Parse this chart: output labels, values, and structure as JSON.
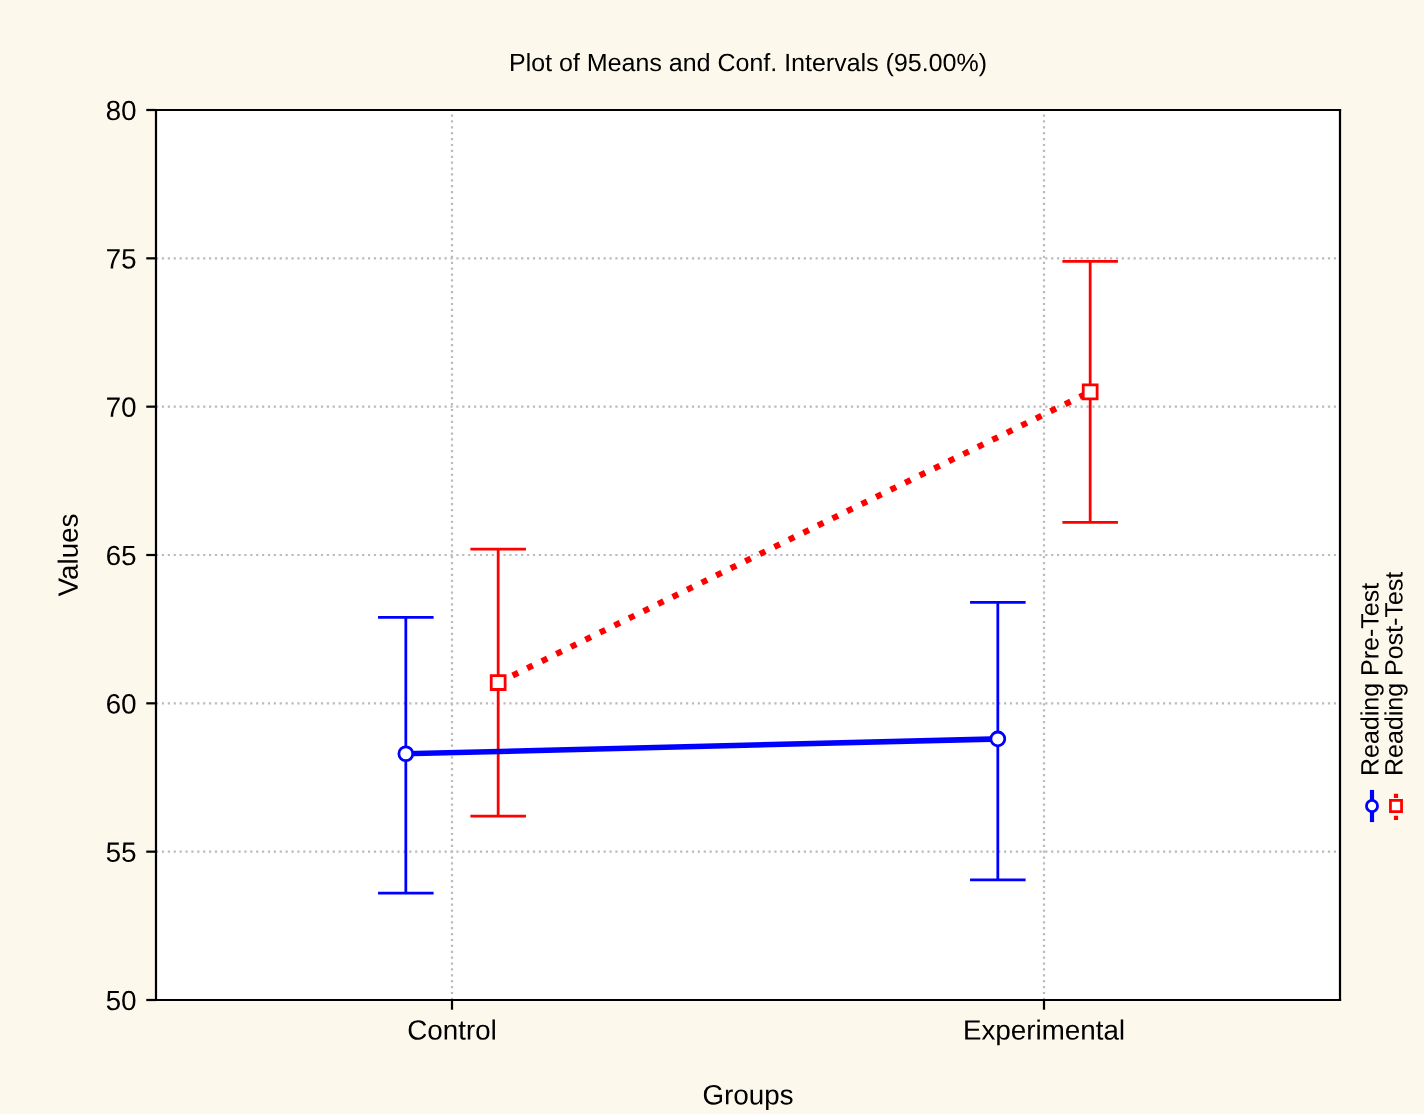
{
  "chart_data": {
    "type": "line",
    "title": "Plot of Means and Conf. Intervals (95.00%)",
    "xlabel": "Groups",
    "ylabel": "Values",
    "categories": [
      "Control",
      "Experimental"
    ],
    "series": [
      {
        "name": "Reading Pre-Test",
        "color": "#0000ff",
        "values": [
          58.3,
          58.8
        ],
        "errors": [
          [
            53.6,
            62.9
          ],
          [
            54.05,
            63.4
          ]
        ],
        "marker": "circle",
        "line_style": "solid"
      },
      {
        "name": "Reading Post-Test",
        "color": "#ff0000",
        "values": [
          60.7,
          70.5
        ],
        "errors": [
          [
            56.2,
            65.2
          ],
          [
            66.1,
            74.9
          ]
        ],
        "marker": "square",
        "line_style": "dotted"
      }
    ],
    "ylim": [
      50,
      80
    ],
    "yticks": [
      50,
      55,
      60,
      65,
      70,
      75,
      80
    ],
    "grid": true,
    "legend": "right"
  }
}
